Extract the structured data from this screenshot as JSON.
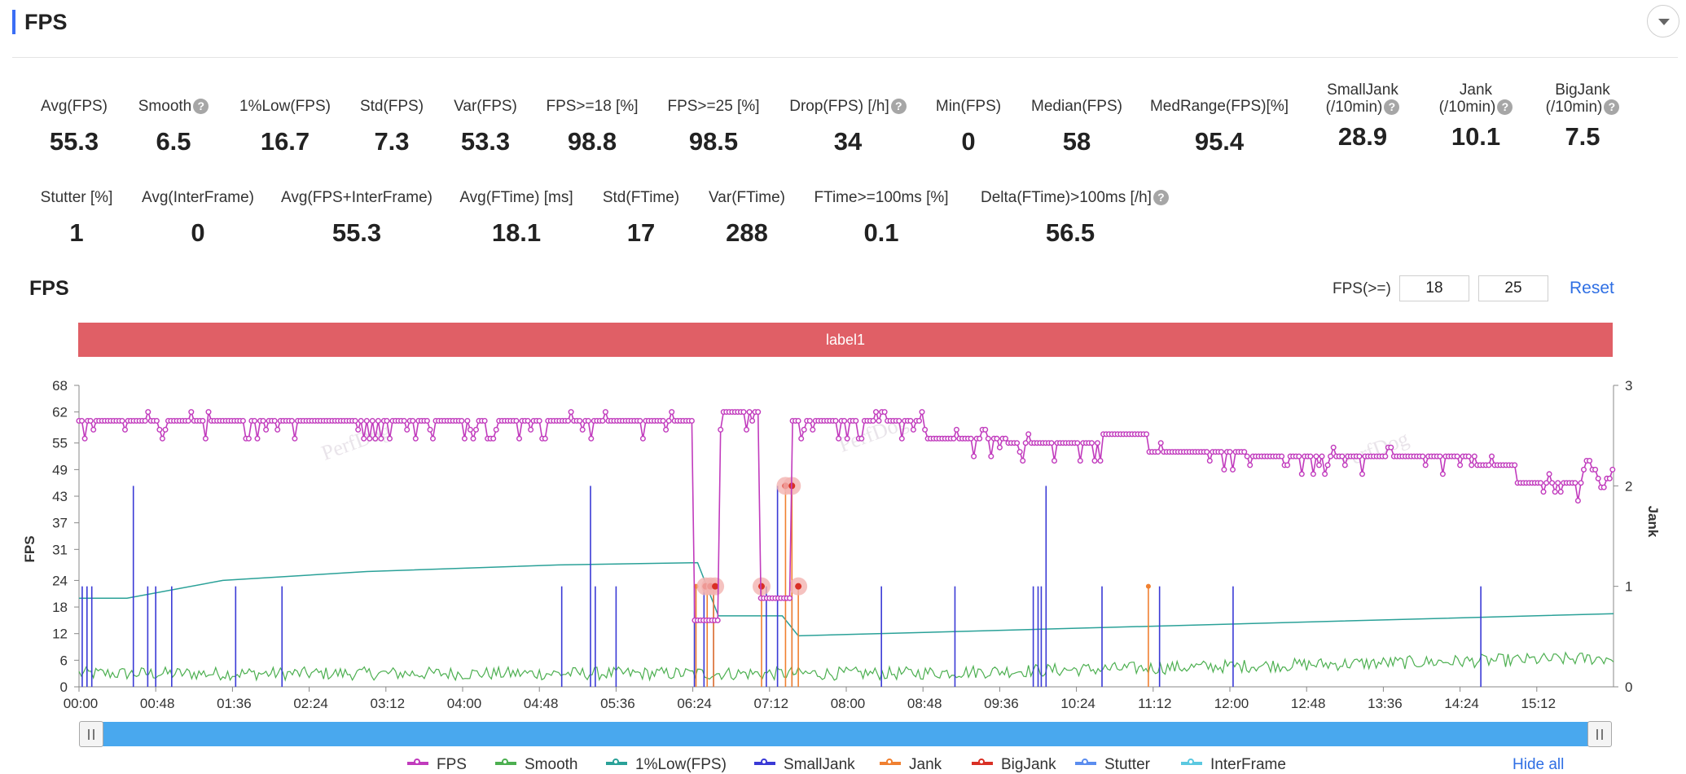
{
  "header": {
    "title": "FPS"
  },
  "metrics_row1": [
    {
      "label": "Avg(FPS)",
      "value": "55.3",
      "help": false
    },
    {
      "label": "Smooth",
      "value": "6.5",
      "help": true
    },
    {
      "label": "1%Low(FPS)",
      "value": "16.7",
      "help": false
    },
    {
      "label": "Std(FPS)",
      "value": "7.3",
      "help": false
    },
    {
      "label": "Var(FPS)",
      "value": "53.3",
      "help": false
    },
    {
      "label": "FPS>=18 [%]",
      "value": "98.8",
      "help": false
    },
    {
      "label": "FPS>=25 [%]",
      "value": "98.5",
      "help": false
    },
    {
      "label": "Drop(FPS) [/h]",
      "value": "34",
      "help": true
    },
    {
      "label": "Min(FPS)",
      "value": "0",
      "help": false
    },
    {
      "label": "Median(FPS)",
      "value": "58",
      "help": false
    },
    {
      "label": "MedRange(FPS)[%]",
      "value": "95.4",
      "help": false
    },
    {
      "label": "SmallJank",
      "label2": "(/10min)",
      "value": "28.9",
      "help": true
    },
    {
      "label": "Jank",
      "label2": "(/10min)",
      "value": "10.1",
      "help": true
    },
    {
      "label": "BigJank",
      "label2": "(/10min)",
      "value": "7.5",
      "help": true
    }
  ],
  "metrics_row2": [
    {
      "label": "Stutter [%]",
      "value": "1",
      "help": false
    },
    {
      "label": "Avg(InterFrame)",
      "value": "0",
      "help": false
    },
    {
      "label": "Avg(FPS+InterFrame)",
      "value": "55.3",
      "help": false
    },
    {
      "label": "Avg(FTime) [ms]",
      "value": "18.1",
      "help": false
    },
    {
      "label": "Std(FTime)",
      "value": "17",
      "help": false
    },
    {
      "label": "Var(FTime)",
      "value": "288",
      "help": false
    },
    {
      "label": "FTime>=100ms [%]",
      "value": "0.1",
      "help": false
    },
    {
      "label": "Delta(FTime)>100ms [/h]",
      "value": "56.5",
      "help": true
    }
  ],
  "help_glyph": "?",
  "chart_section": {
    "title": "FPS",
    "threshold_label": "FPS(>=)",
    "threshold_1": "18",
    "threshold_2": "25",
    "reset_label": "Reset",
    "label_band": "label1",
    "hide_all_label": "Hide all",
    "watermark": "PerfDog"
  },
  "chart_data": {
    "type": "line",
    "xlabel": "",
    "ylabel": "FPS",
    "y2label": "Jank",
    "y_ticks": [
      0,
      6,
      12,
      18,
      24,
      31,
      37,
      43,
      49,
      55,
      62,
      68
    ],
    "y2_ticks": [
      0,
      1,
      2,
      3
    ],
    "ylim": [
      0,
      68
    ],
    "y2lim": [
      0,
      3
    ],
    "x_ticks": [
      "00:00",
      "00:48",
      "01:36",
      "02:24",
      "03:12",
      "04:00",
      "04:48",
      "05:36",
      "06:24",
      "07:12",
      "08:00",
      "08:48",
      "09:36",
      "10:24",
      "11:12",
      "12:00",
      "12:48",
      "13:36",
      "14:24",
      "15:12"
    ],
    "x_range_seconds": [
      0,
      960
    ],
    "legend": [
      "FPS",
      "Smooth",
      "1%Low(FPS)",
      "SmallJank",
      "Jank",
      "BigJank",
      "Stutter",
      "InterFrame"
    ],
    "colors": {
      "FPS": "#c13bbd",
      "Smooth": "#4caf50",
      "1%Low(FPS)": "#2aa198",
      "SmallJank": "#3a3ad6",
      "Jank": "#f08030",
      "BigJank": "#d93025",
      "Stutter": "#5b8def",
      "InterFrame": "#5bc8e0"
    },
    "fps_segments": [
      {
        "from": 0,
        "to": 385,
        "value": 60
      },
      {
        "from": 385,
        "to": 400,
        "value": 15
      },
      {
        "from": 400,
        "to": 425,
        "value": 62
      },
      {
        "from": 425,
        "to": 445,
        "value": 20
      },
      {
        "from": 445,
        "to": 530,
        "value": 60
      },
      {
        "from": 530,
        "to": 580,
        "value": 56
      },
      {
        "from": 580,
        "to": 640,
        "value": 55
      },
      {
        "from": 640,
        "to": 670,
        "value": 57
      },
      {
        "from": 670,
        "to": 730,
        "value": 53
      },
      {
        "from": 730,
        "to": 780,
        "value": 52
      },
      {
        "from": 780,
        "to": 870,
        "value": 52
      },
      {
        "from": 870,
        "to": 900,
        "value": 50
      },
      {
        "from": 900,
        "to": 940,
        "value": 46
      },
      {
        "from": 940,
        "to": 960,
        "value": 49
      }
    ],
    "low1_fps": [
      {
        "x": 0,
        "y": 20
      },
      {
        "x": 30,
        "y": 20
      },
      {
        "x": 90,
        "y": 24
      },
      {
        "x": 180,
        "y": 26
      },
      {
        "x": 300,
        "y": 27.5
      },
      {
        "x": 387,
        "y": 28
      },
      {
        "x": 400,
        "y": 16
      },
      {
        "x": 440,
        "y": 16
      },
      {
        "x": 450,
        "y": 11.5
      },
      {
        "x": 960,
        "y": 16.5
      }
    ],
    "smooth_avg": 3,
    "small_jank_times": [
      2,
      5,
      8,
      34,
      43,
      48,
      58,
      98,
      127,
      302,
      320,
      323,
      336,
      385,
      391,
      397,
      430,
      437,
      446,
      502,
      548,
      597,
      600,
      602,
      605,
      640,
      676,
      722,
      877
    ],
    "jank_times": [
      386,
      393,
      397,
      427,
      442,
      446,
      450,
      669
    ],
    "big_jank_times": [
      392,
      395,
      398,
      427,
      442,
      446,
      450
    ]
  }
}
